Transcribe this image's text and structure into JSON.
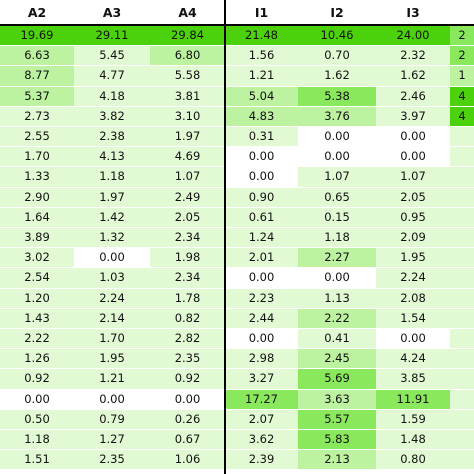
{
  "chart_data": {
    "type": "heatmap",
    "columns": [
      "A2",
      "A3",
      "A4",
      "I1",
      "I2",
      "I3",
      ""
    ],
    "rows": [
      [
        "19.69",
        "29.11",
        "29.84",
        "21.48",
        "10.46",
        "24.00",
        "2"
      ],
      [
        "6.63",
        "5.45",
        "6.80",
        "1.56",
        "0.70",
        "2.32",
        "2"
      ],
      [
        "8.77",
        "4.77",
        "5.58",
        "1.21",
        "1.62",
        "1.62",
        "1"
      ],
      [
        "5.37",
        "4.18",
        "3.81",
        "5.04",
        "5.38",
        "2.46",
        "4"
      ],
      [
        "2.73",
        "3.82",
        "3.10",
        "4.83",
        "3.76",
        "3.97",
        "4"
      ],
      [
        "2.55",
        "2.38",
        "1.97",
        "0.31",
        "0.00",
        "0.00",
        ""
      ],
      [
        "1.70",
        "4.13",
        "4.69",
        "0.00",
        "0.00",
        "0.00",
        ""
      ],
      [
        "1.33",
        "1.18",
        "1.07",
        "0.00",
        "1.07",
        "1.07",
        ""
      ],
      [
        "2.90",
        "1.97",
        "2.49",
        "0.90",
        "0.65",
        "2.05",
        ""
      ],
      [
        "1.64",
        "1.42",
        "2.05",
        "0.61",
        "0.15",
        "0.95",
        ""
      ],
      [
        "3.89",
        "1.32",
        "2.34",
        "1.24",
        "1.18",
        "2.09",
        ""
      ],
      [
        "3.02",
        "0.00",
        "1.98",
        "2.01",
        "2.27",
        "1.95",
        ""
      ],
      [
        "2.54",
        "1.03",
        "2.34",
        "0.00",
        "0.00",
        "2.24",
        ""
      ],
      [
        "1.20",
        "2.24",
        "1.78",
        "2.23",
        "1.13",
        "2.08",
        ""
      ],
      [
        "1.43",
        "2.14",
        "0.82",
        "2.44",
        "2.22",
        "1.54",
        ""
      ],
      [
        "2.22",
        "1.70",
        "2.82",
        "0.00",
        "0.41",
        "0.00",
        ""
      ],
      [
        "1.26",
        "1.95",
        "2.35",
        "2.98",
        "2.45",
        "4.24",
        ""
      ],
      [
        "0.92",
        "1.21",
        "0.92",
        "3.27",
        "5.69",
        "3.85",
        ""
      ],
      [
        "0.00",
        "0.00",
        "0.00",
        "17.27",
        "3.63",
        "11.91",
        ""
      ],
      [
        "0.50",
        "0.79",
        "0.26",
        "2.07",
        "5.57",
        "1.59",
        ""
      ],
      [
        "1.18",
        "1.27",
        "0.67",
        "3.62",
        "5.83",
        "1.48",
        ""
      ],
      [
        "1.51",
        "2.35",
        "1.06",
        "2.39",
        "2.13",
        "0.80",
        ""
      ]
    ],
    "grid": false,
    "colors": {
      "max": "#4cd20c",
      "high": "#8ae85c",
      "mid": "#bdf2a0",
      "low": "#e2fad4",
      "zero": "#ffffff",
      "text": "#111111",
      "rule": "#000000"
    }
  }
}
